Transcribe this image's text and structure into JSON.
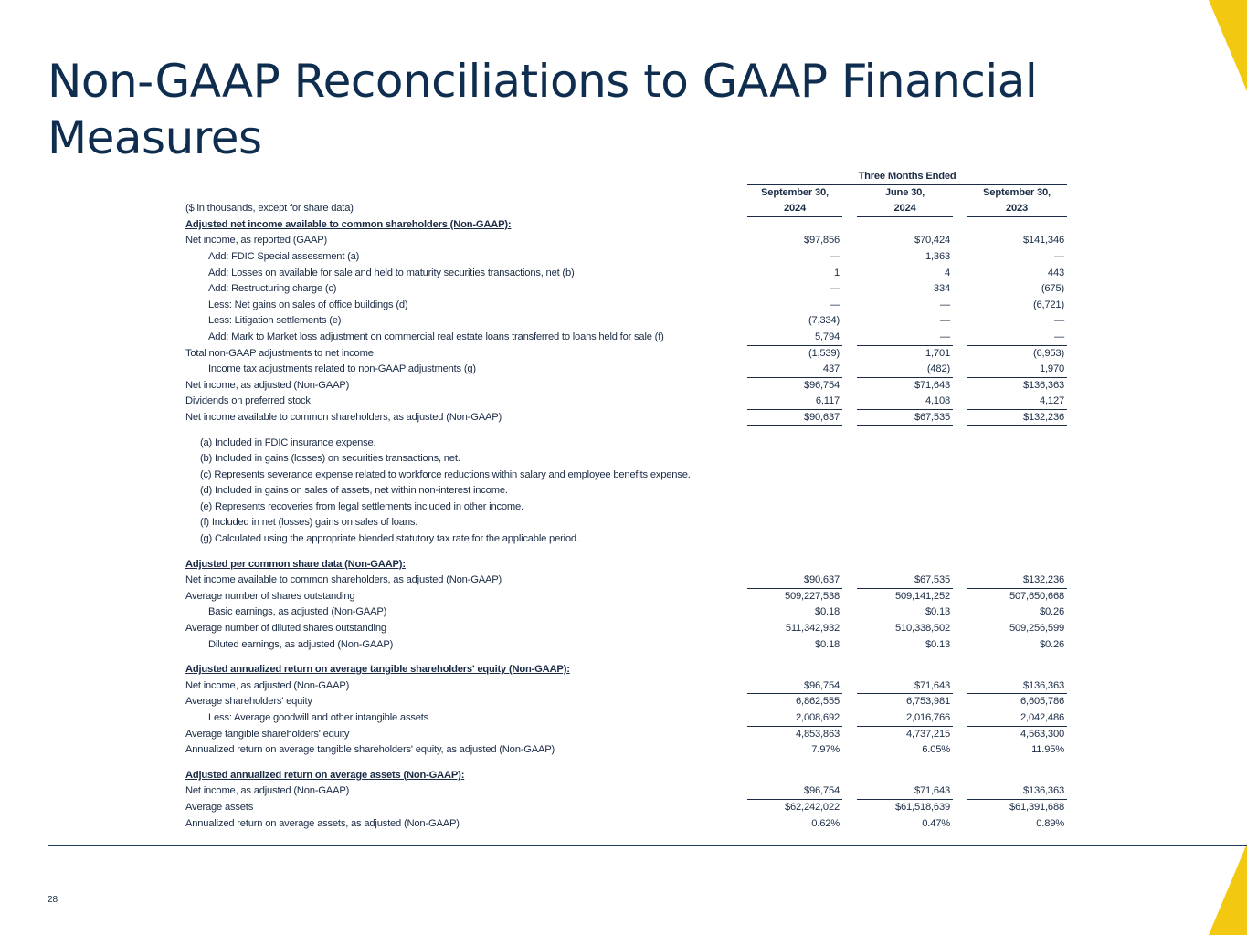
{
  "title": "Non-GAAP Reconciliations to GAAP Financial Measures",
  "page_number": "28",
  "brand_color": "#f2c811",
  "text_color": "#0f2d4f",
  "table": {
    "group_header": "Three Months Ended",
    "units_label": "($ in thousands, except for share data)",
    "columns": [
      {
        "line1": "September 30,",
        "line2": "2024"
      },
      {
        "line1": "June 30,",
        "line2": "2024"
      },
      {
        "line1": "September 30,",
        "line2": "2023"
      }
    ],
    "rows": [
      {
        "type": "section",
        "label": "Adjusted net income available to common shareholders (Non-GAAP):"
      },
      {
        "label": "Net income, as reported (GAAP)",
        "values": [
          "$97,856",
          "$70,424",
          "$141,346"
        ]
      },
      {
        "label": "Add: FDIC Special assessment (a)",
        "indent": true,
        "values": [
          "—",
          "1,363",
          "—"
        ]
      },
      {
        "label": "Add: Losses on available for sale and held to maturity securities transactions, net (b)",
        "indent": true,
        "values": [
          "1",
          "4",
          "443"
        ]
      },
      {
        "label": "Add: Restructuring charge (c)",
        "indent": true,
        "values": [
          "—",
          "334",
          "(675)"
        ]
      },
      {
        "label": "Less: Net gains on sales of office buildings (d)",
        "indent": true,
        "values": [
          "—",
          "—",
          "(6,721)"
        ]
      },
      {
        "label": "Less: Litigation settlements (e)",
        "indent": true,
        "values": [
          "(7,334)",
          "—",
          "—"
        ]
      },
      {
        "label": "Add: Mark to Market loss adjustment on commercial real estate loans transferred to loans held for sale (f)",
        "indent": true,
        "values": [
          "5,794",
          "—",
          "—"
        ],
        "rule": true
      },
      {
        "label": "Total non-GAAP adjustments to net income",
        "values": [
          "(1,539)",
          "1,701",
          "(6,953)"
        ]
      },
      {
        "label": "Income tax adjustments related to non-GAAP adjustments (g)",
        "indent": true,
        "values": [
          "437",
          "(482)",
          "1,970"
        ],
        "rule": true
      },
      {
        "label": "Net income, as adjusted (Non-GAAP)",
        "values": [
          "$96,754",
          "$71,643",
          "$136,363"
        ]
      },
      {
        "label": "Dividends on preferred stock",
        "values": [
          "6,117",
          "4,108",
          "4,127"
        ],
        "rule": true
      },
      {
        "label": "Net income available to common shareholders, as adjusted (Non-GAAP)",
        "values": [
          "$90,637",
          "$67,535",
          "$132,236"
        ],
        "rule": true
      },
      {
        "type": "spacer"
      },
      {
        "type": "footnote",
        "label": "(a) Included in FDIC insurance expense."
      },
      {
        "type": "footnote",
        "label": "(b) Included in gains (losses) on securities transactions, net."
      },
      {
        "type": "footnote",
        "label": "(c) Represents severance expense related to workforce reductions within salary and employee benefits expense."
      },
      {
        "type": "footnote",
        "label": "(d) Included in gains on sales of assets, net within non-interest income."
      },
      {
        "type": "footnote",
        "label": "(e) Represents recoveries from legal settlements included in other income."
      },
      {
        "type": "footnote",
        "label": "(f) Included in net (losses) gains on sales of loans."
      },
      {
        "type": "footnote",
        "label": "(g) Calculated using the appropriate blended statutory tax rate for the applicable period."
      },
      {
        "type": "spacer"
      },
      {
        "type": "section",
        "label": "Adjusted per common share data (Non-GAAP):"
      },
      {
        "label": "Net income available to common shareholders, as adjusted (Non-GAAP)",
        "values": [
          "$90,637",
          "$67,535",
          "$132,236"
        ],
        "rule": true
      },
      {
        "label": "Average number of shares outstanding",
        "values": [
          "509,227,538",
          "509,141,252",
          "507,650,668"
        ]
      },
      {
        "label": "Basic earnings, as adjusted (Non-GAAP)",
        "indent": true,
        "values": [
          "$0.18",
          "$0.13",
          "$0.26"
        ]
      },
      {
        "label": "Average number of diluted shares outstanding",
        "values": [
          "511,342,932",
          "510,338,502",
          "509,256,599"
        ]
      },
      {
        "label": "Diluted earnings, as adjusted (Non-GAAP)",
        "indent": true,
        "values": [
          "$0.18",
          "$0.13",
          "$0.26"
        ]
      },
      {
        "type": "spacer"
      },
      {
        "type": "section",
        "label": "Adjusted annualized return on average tangible shareholders' equity (Non-GAAP):"
      },
      {
        "label": "Net income, as adjusted (Non-GAAP)",
        "values": [
          "$96,754",
          "$71,643",
          "$136,363"
        ],
        "rule": true
      },
      {
        "label": "Average shareholders' equity",
        "values": [
          "6,862,555",
          "6,753,981",
          "6,605,786"
        ]
      },
      {
        "label": "Less: Average goodwill and other intangible assets",
        "indent": true,
        "values": [
          "2,008,692",
          "2,016,766",
          "2,042,486"
        ],
        "rule": true
      },
      {
        "label": "Average tangible shareholders' equity",
        "values": [
          "4,853,863",
          "4,737,215",
          "4,563,300"
        ]
      },
      {
        "label": "Annualized return on average tangible shareholders' equity, as adjusted (Non-GAAP)",
        "values": [
          "7.97%",
          "6.05%",
          "11.95%"
        ]
      },
      {
        "type": "spacer"
      },
      {
        "type": "section",
        "label": "Adjusted annualized return on average assets (Non-GAAP):"
      },
      {
        "label": "Net income, as adjusted (Non-GAAP)",
        "values": [
          "$96,754",
          "$71,643",
          "$136,363"
        ],
        "rule": true
      },
      {
        "label": "Average assets",
        "values": [
          "$62,242,022",
          "$61,518,639",
          "$61,391,688"
        ]
      },
      {
        "label": "Annualized return on average assets, as adjusted (Non-GAAP)",
        "values": [
          "0.62%",
          "0.47%",
          "0.89%"
        ]
      }
    ]
  }
}
